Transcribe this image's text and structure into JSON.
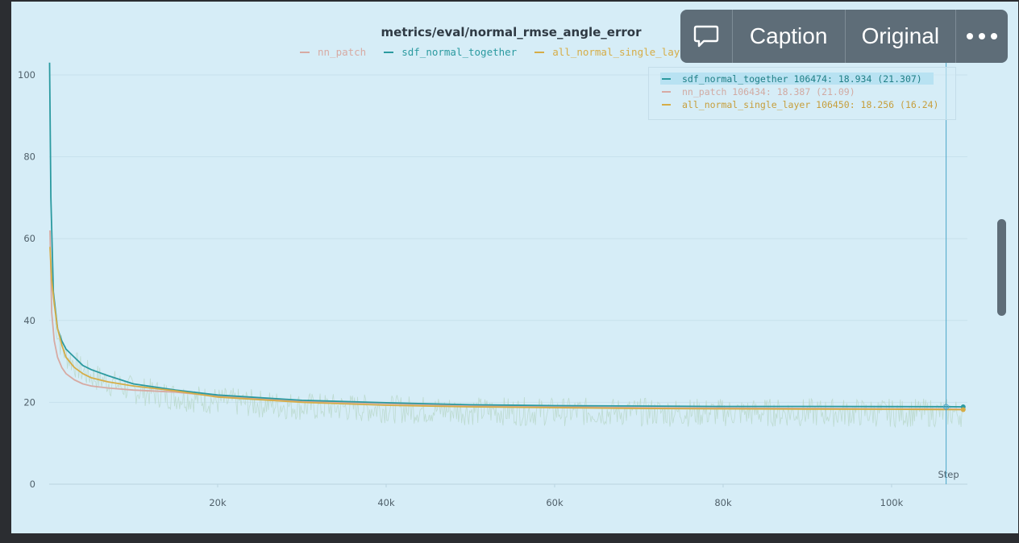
{
  "toolbar": {
    "caption_icon": "speech-bubble-icon",
    "caption_label": "Caption",
    "original_label": "Original",
    "more_icon": "more-dots-icon"
  },
  "colors": {
    "panel_bg": "#d6edf7",
    "sdf_normal_together": "#2b9aa0",
    "nn_patch": "#d7aaa3",
    "all_normal_single_layer": "#d6ad47"
  },
  "legend": [
    {
      "name": "nn_patch",
      "color": "#d7aaa3"
    },
    {
      "name": "sdf_normal_together",
      "color": "#2b9aa0"
    },
    {
      "name": "all_normal_single_layer",
      "color": "#d6ad47"
    }
  ],
  "tooltip": {
    "rows": [
      {
        "label": "sdf_normal_together 106474: 18.934 (21.307)",
        "color": "#2b9aa0"
      },
      {
        "label": "nn_patch 106434: 18.387 (21.09)",
        "color": "#d7aaa3"
      },
      {
        "label": "all_normal_single_layer 106450: 18.256 (16.24)",
        "color": "#d6ad47"
      }
    ]
  },
  "chart_data": {
    "type": "line",
    "title": "metrics/eval/normal_rmse_angle_error",
    "xlabel": "Step",
    "ylabel": "",
    "xlim": [
      0,
      109000
    ],
    "ylim": [
      0,
      100
    ],
    "x_ticks": [
      20000,
      40000,
      60000,
      80000,
      100000
    ],
    "x_tick_labels": [
      "20k",
      "40k",
      "60k",
      "80k",
      "100k"
    ],
    "y_ticks": [
      0,
      20,
      40,
      60,
      80,
      100
    ],
    "y_tick_labels": [
      "0",
      "20",
      "40",
      "60",
      "80",
      "100"
    ],
    "grid": true,
    "legend_position": "top",
    "hover_step": 106474,
    "series": [
      {
        "name": "nn_patch",
        "color": "#d7aaa3",
        "x": [
          100,
          300,
          600,
          1000,
          1500,
          2000,
          3000,
          4000,
          5000,
          7000,
          10000,
          15000,
          20000,
          30000,
          40000,
          50000,
          60000,
          70000,
          80000,
          90000,
          100000,
          106434,
          108500
        ],
        "y": [
          62,
          42,
          35,
          31,
          28.5,
          27,
          25.5,
          24.5,
          24,
          23.5,
          23,
          22.5,
          21.5,
          20.3,
          19.7,
          19.2,
          18.9,
          18.7,
          18.6,
          18.5,
          18.4,
          18.387,
          18.3
        ]
      },
      {
        "name": "sdf_normal_together",
        "color": "#2b9aa0",
        "x": [
          50,
          200,
          500,
          1000,
          1500,
          2000,
          3000,
          4000,
          5000,
          7000,
          10000,
          15000,
          20000,
          30000,
          40000,
          50000,
          60000,
          70000,
          80000,
          90000,
          100000,
          106474,
          108500
        ],
        "y": [
          103,
          70,
          47,
          38,
          35,
          33,
          31,
          29,
          28,
          26.5,
          24.5,
          23,
          21.8,
          20.5,
          19.9,
          19.4,
          19.2,
          19.1,
          19.0,
          19.0,
          18.95,
          18.934,
          18.9
        ]
      },
      {
        "name": "all_normal_single_layer",
        "color": "#d6ad47",
        "x": [
          100,
          300,
          600,
          1000,
          1500,
          2000,
          3000,
          4000,
          5000,
          7000,
          10000,
          15000,
          20000,
          30000,
          40000,
          50000,
          60000,
          70000,
          80000,
          90000,
          100000,
          106450,
          108500
        ],
        "y": [
          58,
          50,
          44,
          38,
          34,
          31,
          28.5,
          27,
          26,
          25,
          24,
          22.8,
          21.3,
          20,
          19.3,
          18.9,
          18.7,
          18.5,
          18.4,
          18.35,
          18.3,
          18.256,
          18.2
        ]
      }
    ]
  }
}
